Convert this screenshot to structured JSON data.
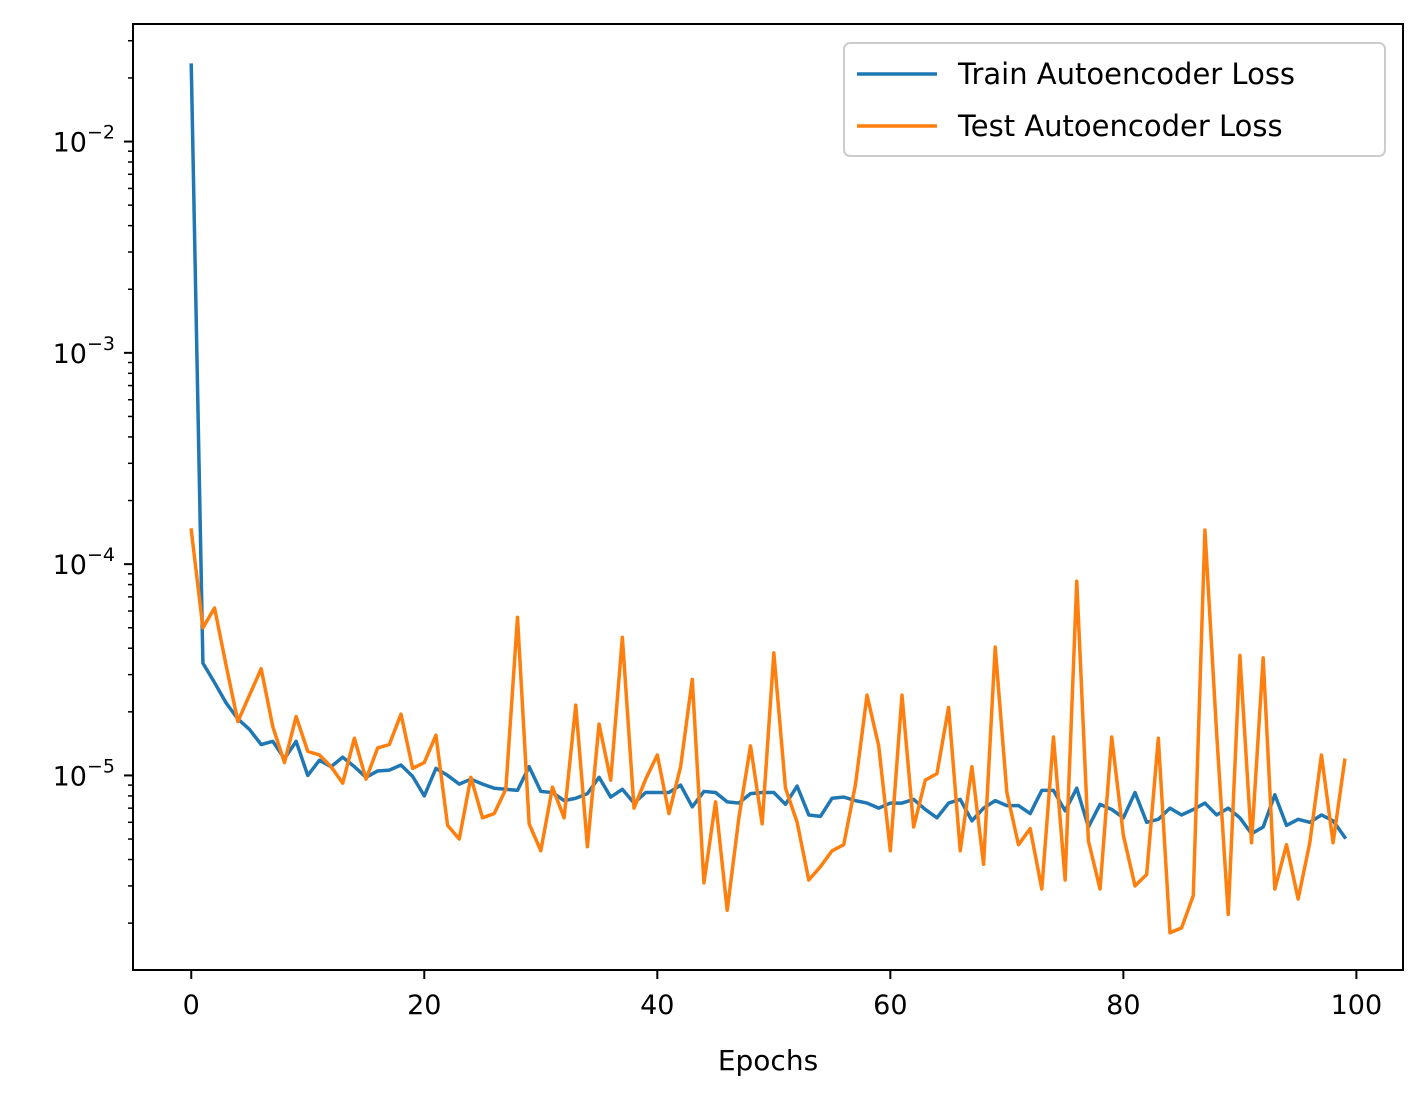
{
  "chart_data": {
    "type": "line",
    "title": "",
    "xlabel": "Epochs",
    "ylabel": "",
    "yscale": "log",
    "xlim": [
      -5,
      104
    ],
    "ylim": [
      1.2e-06,
      0.036
    ],
    "x_ticks": [
      0,
      20,
      40,
      60,
      80,
      100
    ],
    "x_tick_labels": [
      "0",
      "20",
      "40",
      "60",
      "80",
      "100"
    ],
    "y_ticks": [
      1e-05,
      0.0001,
      0.001,
      0.01
    ],
    "y_tick_labels": [
      {
        "base": "10",
        "exp": "−5"
      },
      {
        "base": "10",
        "exp": "−4"
      },
      {
        "base": "10",
        "exp": "−3"
      },
      {
        "base": "10",
        "exp": "−2"
      }
    ],
    "grid": false,
    "legend_position": "upper right",
    "x": [
      0,
      1,
      2,
      3,
      4,
      5,
      6,
      7,
      8,
      9,
      10,
      11,
      12,
      13,
      14,
      15,
      16,
      17,
      18,
      19,
      20,
      21,
      22,
      23,
      24,
      25,
      26,
      27,
      28,
      29,
      30,
      31,
      32,
      33,
      34,
      35,
      36,
      37,
      38,
      39,
      40,
      41,
      42,
      43,
      44,
      45,
      46,
      47,
      48,
      49,
      50,
      51,
      52,
      53,
      54,
      55,
      56,
      57,
      58,
      59,
      60,
      61,
      62,
      63,
      64,
      65,
      66,
      67,
      68,
      69,
      70,
      71,
      72,
      73,
      74,
      75,
      76,
      77,
      78,
      79,
      80,
      81,
      82,
      83,
      84,
      85,
      86,
      87,
      88,
      89,
      90,
      91,
      92,
      93,
      94,
      95,
      96,
      97,
      98,
      99
    ],
    "series": [
      {
        "name": "Train Autoencoder Loss",
        "color": "#1f77b4",
        "values": [
          0.023,
          3.4e-05,
          2.75e-05,
          2.2e-05,
          1.85e-05,
          1.65e-05,
          1.4e-05,
          1.45e-05,
          1.2e-05,
          1.45e-05,
          1e-05,
          1.18e-05,
          1.1e-05,
          1.22e-05,
          1.1e-05,
          9.8e-06,
          1.05e-05,
          1.06e-05,
          1.12e-05,
          9.9e-06,
          8e-06,
          1.08e-05,
          1e-05,
          9.1e-06,
          9.6e-06,
          9.1e-06,
          8.7e-06,
          8.6e-06,
          8.5e-06,
          1.1e-05,
          8.4e-06,
          8.3e-06,
          7.6e-06,
          7.8e-06,
          8.2e-06,
          9.8e-06,
          7.9e-06,
          8.6e-06,
          7.4e-06,
          8.3e-06,
          8.3e-06,
          8.3e-06,
          9e-06,
          7.1e-06,
          8.4e-06,
          8.3e-06,
          7.5e-06,
          7.4e-06,
          8.2e-06,
          8.3e-06,
          8.3e-06,
          7.3e-06,
          8.9e-06,
          6.5e-06,
          6.4e-06,
          7.8e-06,
          7.9e-06,
          7.6e-06,
          7.4e-06,
          7e-06,
          7.4e-06,
          7.4e-06,
          7.7e-06,
          6.9e-06,
          6.3e-06,
          7.4e-06,
          7.7e-06,
          6.1e-06,
          7e-06,
          7.6e-06,
          7.2e-06,
          7.2e-06,
          6.6e-06,
          8.5e-06,
          8.5e-06,
          6.8e-06,
          8.7e-06,
          5.7e-06,
          7.3e-06,
          6.9e-06,
          6.3e-06,
          8.3e-06,
          6e-06,
          6.2e-06,
          7e-06,
          6.5e-06,
          6.9e-06,
          7.4e-06,
          6.5e-06,
          7e-06,
          6.3e-06,
          5.3e-06,
          5.7e-06,
          8.1e-06,
          5.8e-06,
          6.2e-06,
          6e-06,
          6.5e-06,
          6.1e-06,
          5.1e-06
        ]
      },
      {
        "name": "Test Autoencoder Loss",
        "color": "#ff7f0e",
        "values": [
          0.000145,
          5e-05,
          6.2e-05,
          3.3e-05,
          1.8e-05,
          2.4e-05,
          3.2e-05,
          1.7e-05,
          1.15e-05,
          1.9e-05,
          1.3e-05,
          1.25e-05,
          1.1e-05,
          9.2e-06,
          1.5e-05,
          9.6e-06,
          1.35e-05,
          1.4e-05,
          1.95e-05,
          1.08e-05,
          1.15e-05,
          1.55e-05,
          5.8e-06,
          5e-06,
          9.8e-06,
          6.3e-06,
          6.6e-06,
          8.6e-06,
          5.6e-05,
          5.9e-06,
          4.4e-06,
          8.8e-06,
          6.3e-06,
          2.15e-05,
          4.6e-06,
          1.75e-05,
          9.5e-06,
          4.5e-05,
          7e-06,
          9.6e-06,
          1.25e-05,
          6.6e-06,
          1.1e-05,
          2.85e-05,
          3.1e-06,
          7.5e-06,
          2.3e-06,
          6.3e-06,
          1.38e-05,
          5.9e-06,
          3.8e-05,
          8.7e-06,
          6e-06,
          3.2e-06,
          3.7e-06,
          4.4e-06,
          4.7e-06,
          9e-06,
          2.4e-05,
          1.38e-05,
          4.4e-06,
          2.4e-05,
          5.7e-06,
          9.5e-06,
          1.02e-05,
          2.1e-05,
          4.4e-06,
          1.1e-05,
          3.8e-06,
          4.05e-05,
          8.3e-06,
          4.7e-06,
          5.6e-06,
          2.9e-06,
          1.52e-05,
          3.2e-06,
          8.3e-05,
          4.9e-06,
          2.9e-06,
          1.52e-05,
          5.2e-06,
          3e-06,
          3.4e-06,
          1.5e-05,
          1.8e-06,
          1.9e-06,
          2.7e-06,
          0.000145,
          1.6e-05,
          2.2e-06,
          3.7e-05,
          4.8e-06,
          3.6e-05,
          2.9e-06,
          4.7e-06,
          2.6e-06,
          4.8e-06,
          1.25e-05,
          4.8e-06,
          1.18e-05
        ]
      }
    ]
  }
}
